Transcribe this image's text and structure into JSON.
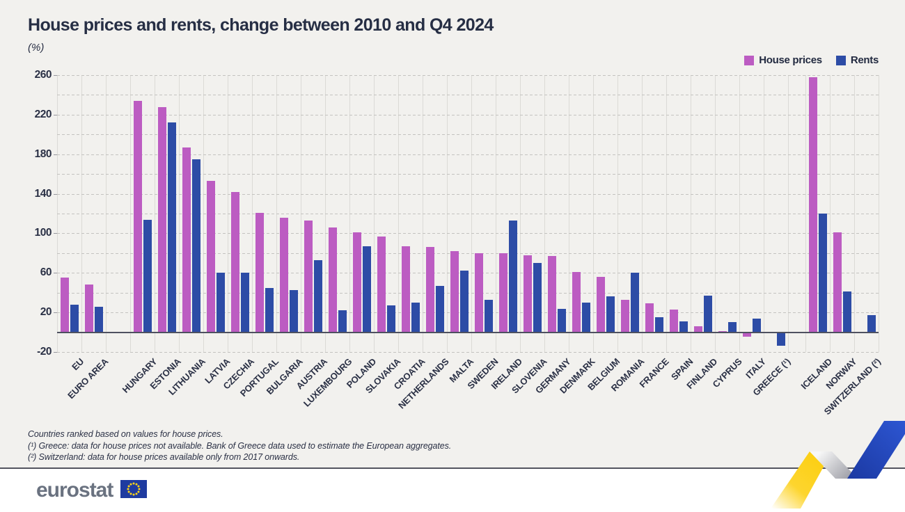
{
  "title": "House prices and rents, change between 2010 and Q4 2024",
  "subtitle": "(%)",
  "legend": [
    {
      "label": "House prices",
      "color": "#bc5cc2"
    },
    {
      "label": "Rents",
      "color": "#2d4ca6"
    }
  ],
  "chart_data": {
    "type": "bar",
    "title": "House prices and rents, change between 2010 and Q4 2024",
    "unit": "(%)",
    "ylim": [
      -20,
      260
    ],
    "ytick_step": 20,
    "ytick_labels": [
      260,
      220,
      180,
      140,
      100,
      60,
      20,
      -20
    ],
    "grid": "horizontal dashed every 20, vertical solid slot separators",
    "legend_position": "top-right",
    "categories": [
      "EU",
      "EURO AREA",
      "HUNGARY",
      "ESTONIA",
      "LITHUANIA",
      "LATVIA",
      "CZECHIA",
      "PORTUGAL",
      "BULGARIA",
      "AUSTRIA",
      "LUXEMBOURG",
      "POLAND",
      "SLOVAKIA",
      "CROATIA",
      "NETHERLANDS",
      "MALTA",
      "SWEDEN",
      "IRELAND",
      "SLOVENIA",
      "GERMANY",
      "DENMARK",
      "BELGIUM",
      "ROMANIA",
      "FRANCE",
      "SPAIN",
      "FINLAND",
      "CYPRUS",
      "ITALY",
      "GREECE (¹)",
      "ICELAND",
      "NORWAY",
      "SWITZERLAND (²)"
    ],
    "group_breaks_after": [
      1,
      28
    ],
    "series": [
      {
        "name": "House prices",
        "color": "#bc5cc2",
        "values": [
          55,
          48,
          234,
          228,
          187,
          153,
          142,
          121,
          116,
          113,
          106,
          101,
          97,
          87,
          86,
          82,
          80,
          80,
          78,
          77,
          61,
          56,
          33,
          29,
          23,
          6,
          1,
          -4,
          null,
          258,
          101,
          null
        ]
      },
      {
        "name": "Rents",
        "color": "#2d4ca6",
        "values": [
          28,
          26,
          114,
          212,
          175,
          60,
          60,
          45,
          43,
          73,
          22,
          87,
          27,
          30,
          47,
          62,
          33,
          113,
          70,
          24,
          30,
          36,
          60,
          15,
          11,
          37,
          10,
          14,
          -13,
          120,
          41,
          17
        ]
      }
    ]
  },
  "footnotes": [
    "Countries ranked based on values for house prices.",
    "(¹) Greece: data for house prices not available. Bank of Greece data used to estimate the European aggregates.",
    "(²) Switzerland: data for house prices available only from 2017 onwards."
  ],
  "footer": {
    "logo_text": "eurostat"
  }
}
